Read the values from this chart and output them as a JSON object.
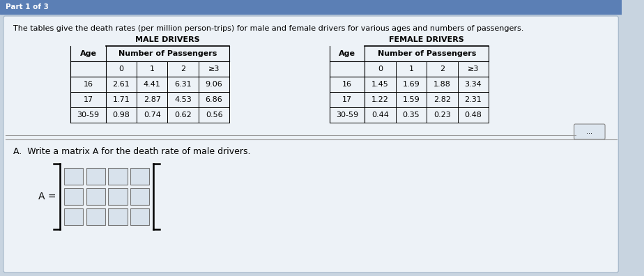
{
  "header_text": "The tables give the death rates (per million person-trips) for male and female drivers for various ages and numbers of passengers.",
  "male_title": "MALE DRIVERS",
  "female_title": "FEMALE DRIVERS",
  "col_header": "Number of Passengers",
  "age_label": "Age",
  "passenger_cols": [
    "0",
    "1",
    "2",
    "≥3"
  ],
  "age_rows": [
    "16",
    "17",
    "30-59"
  ],
  "male_data": [
    [
      2.61,
      4.41,
      6.31,
      9.06
    ],
    [
      1.71,
      2.87,
      4.53,
      6.86
    ],
    [
      0.98,
      0.74,
      0.62,
      0.56
    ]
  ],
  "female_data": [
    [
      1.45,
      1.69,
      1.88,
      3.34
    ],
    [
      1.22,
      1.59,
      2.82,
      2.31
    ],
    [
      0.44,
      0.35,
      0.23,
      0.48
    ]
  ],
  "question_A": "A.  Write a matrix A for the death rate of male drivers.",
  "dots_label": "...",
  "part_label": "Part 1 of 3",
  "top_strip_color": "#5b7fb5",
  "bg_color": "#c8d4e0",
  "content_bg": "#dce6ef",
  "white_box_color": "#e8eef4"
}
